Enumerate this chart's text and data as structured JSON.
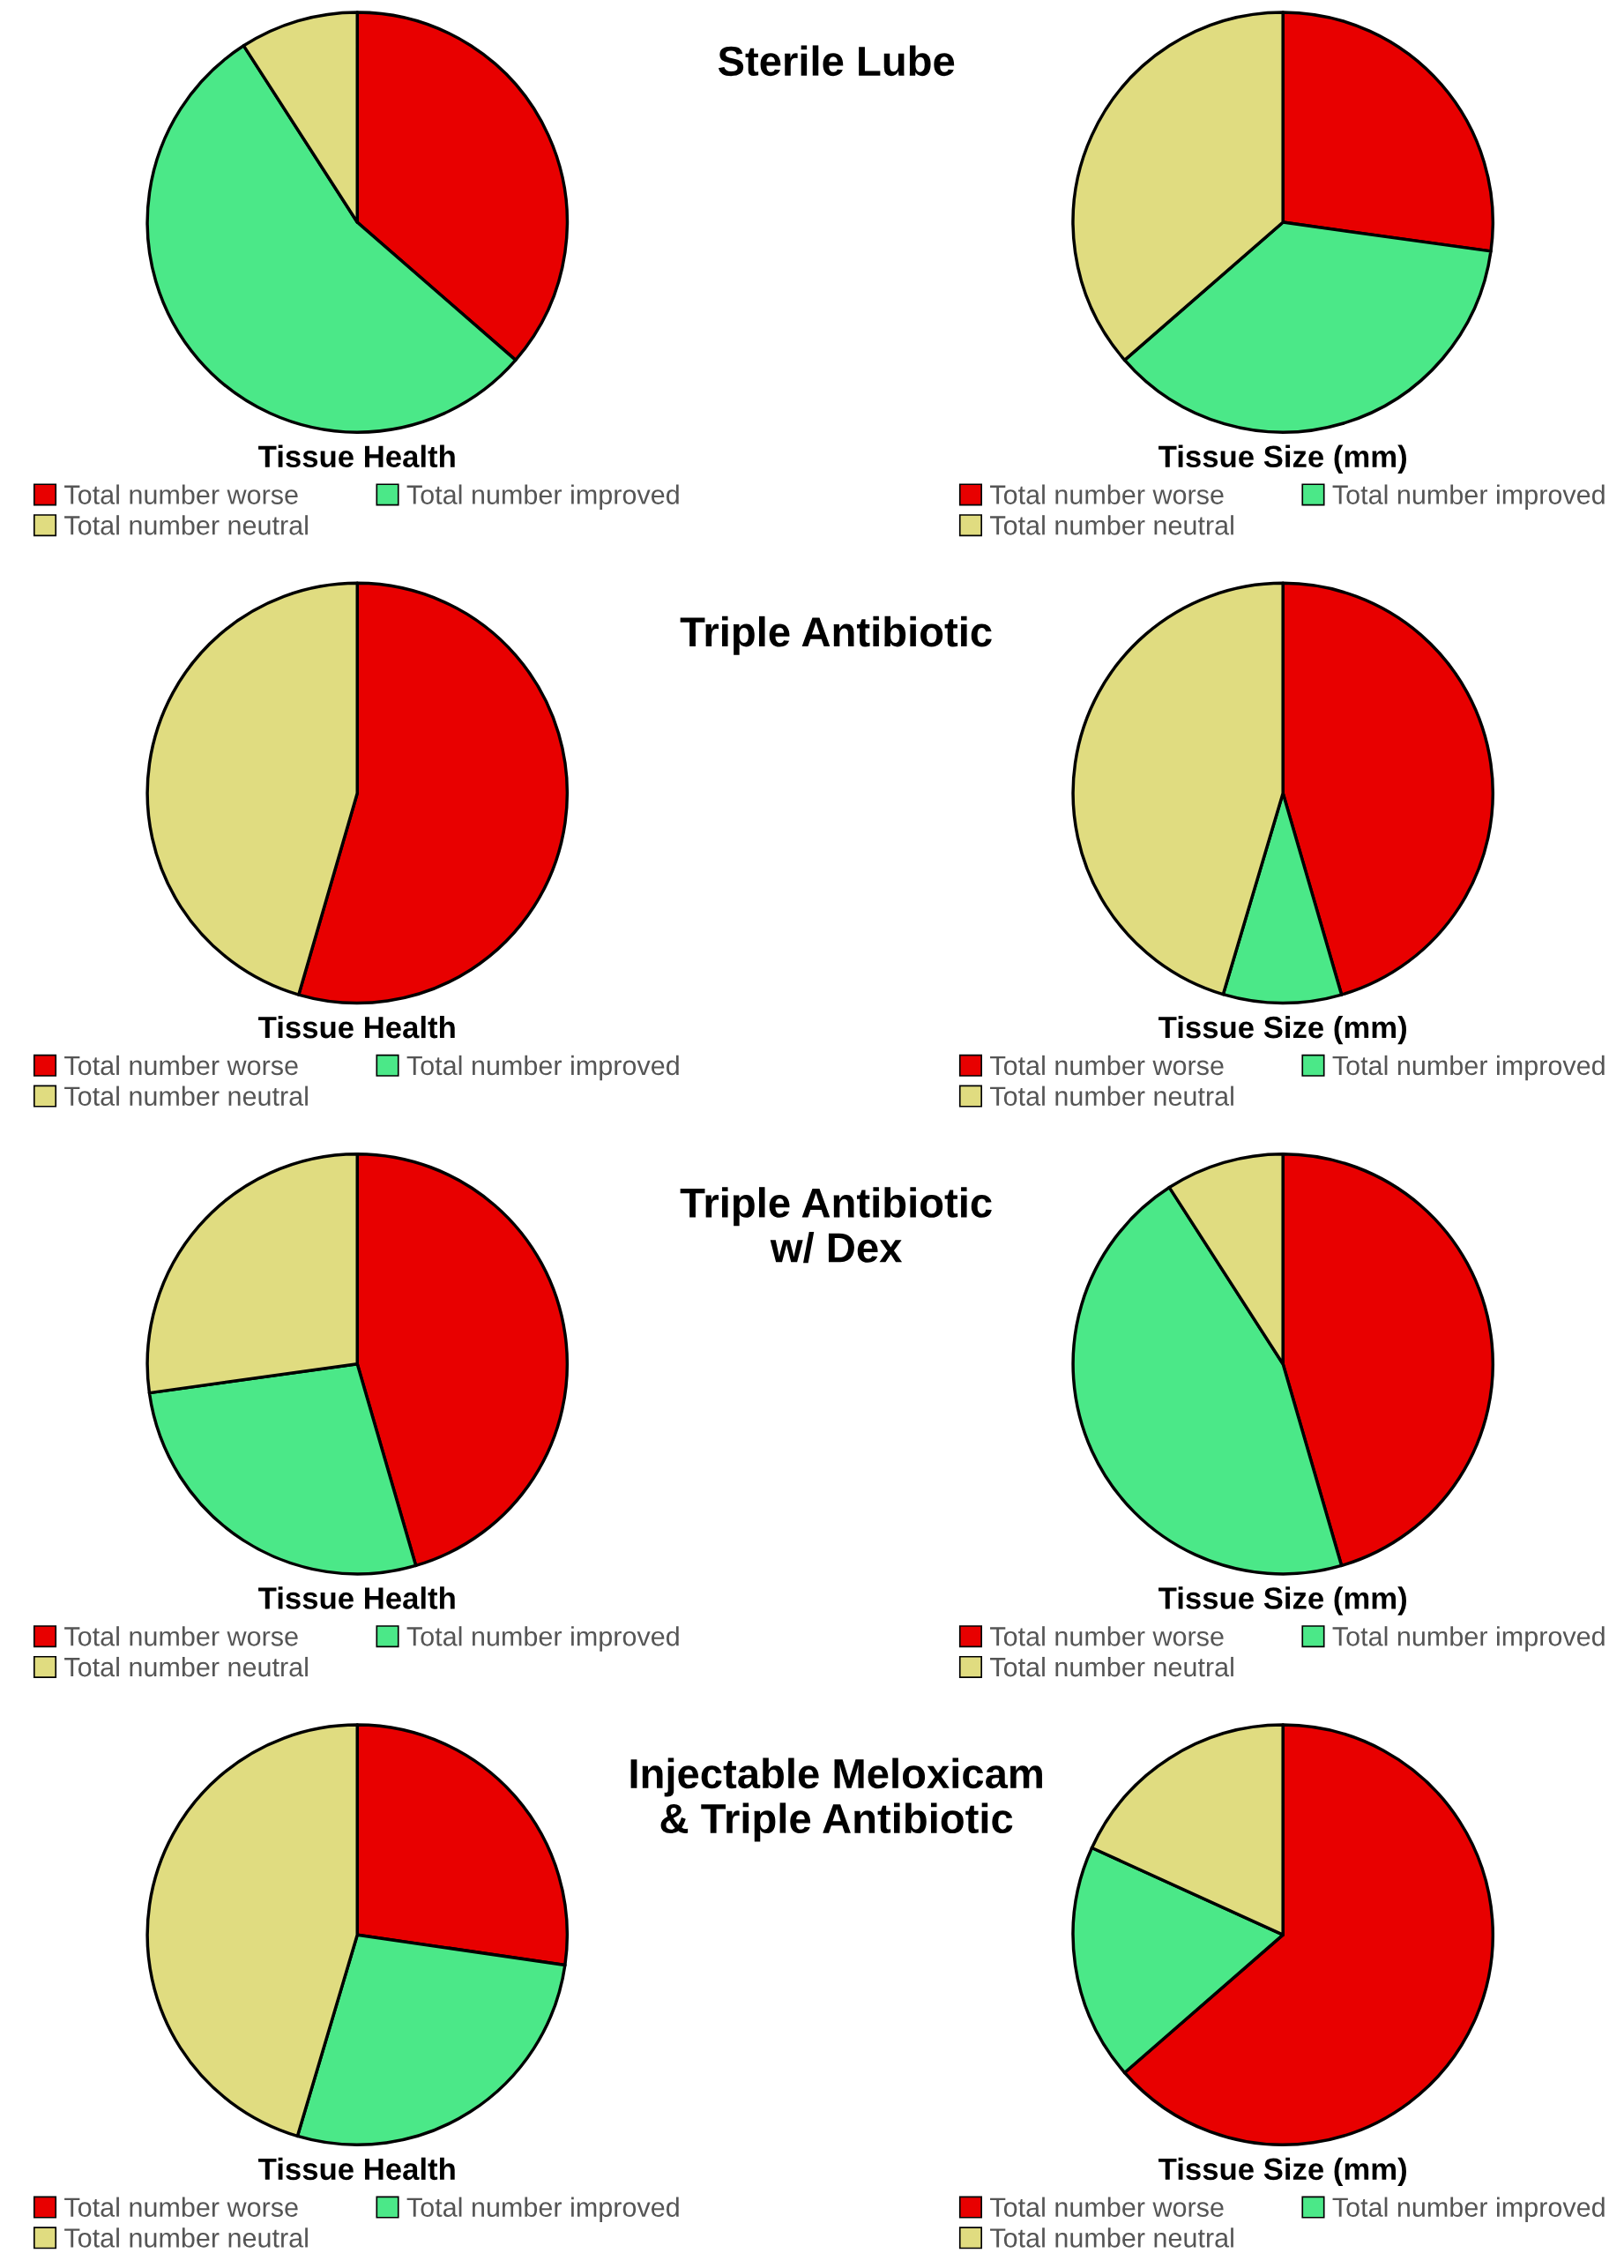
{
  "chart_data": [
    {
      "type": "pie",
      "title": "Tissue Health",
      "annotations": [
        "Sterile Lube"
      ],
      "categories": [
        "Total number worse",
        "Total number improved",
        "Total number neutral"
      ],
      "values": [
        36.4,
        54.5,
        9.1
      ],
      "colors": [
        "#e80000",
        "#4be888",
        "#e0dc80"
      ],
      "legend": "bottom"
    },
    {
      "type": "pie",
      "title": "Tissue Size (mm)",
      "categories": [
        "Total number worse",
        "Total number improved",
        "Total number neutral"
      ],
      "values": [
        27.2,
        36.4,
        36.4
      ],
      "colors": [
        "#e80000",
        "#4be888",
        "#e0dc80"
      ],
      "legend": "bottom"
    },
    {
      "type": "pie",
      "title": "Tissue Health",
      "annotations": [
        "Triple Antibiotic"
      ],
      "categories": [
        "Total number worse",
        "Total number improved",
        "Total number neutral"
      ],
      "values": [
        54.5,
        0,
        45.5
      ],
      "colors": [
        "#e80000",
        "#4be888",
        "#e0dc80"
      ],
      "legend": "bottom"
    },
    {
      "type": "pie",
      "title": "Tissue Size (mm)",
      "categories": [
        "Total number worse",
        "Total number improved",
        "Total number neutral"
      ],
      "values": [
        45.5,
        9.1,
        45.4
      ],
      "colors": [
        "#e80000",
        "#4be888",
        "#e0dc80"
      ],
      "legend": "bottom"
    },
    {
      "type": "pie",
      "title": "Tissue Health",
      "annotations": [
        "Triple Antibiotic\nw/ Dex"
      ],
      "categories": [
        "Total number worse",
        "Total number improved",
        "Total number neutral"
      ],
      "values": [
        45.5,
        27.3,
        27.2
      ],
      "colors": [
        "#e80000",
        "#4be888",
        "#e0dc80"
      ],
      "legend": "bottom"
    },
    {
      "type": "pie",
      "title": "Tissue Size (mm)",
      "categories": [
        "Total number worse",
        "Total number improved",
        "Total number neutral"
      ],
      "values": [
        45.5,
        45.4,
        9.1
      ],
      "colors": [
        "#e80000",
        "#4be888",
        "#e0dc80"
      ],
      "legend": "bottom"
    },
    {
      "type": "pie",
      "title": "Tissue Health",
      "annotations": [
        "Injectable Meloxicam\n& Triple Antibiotic"
      ],
      "categories": [
        "Total number worse",
        "Total number improved",
        "Total number neutral"
      ],
      "values": [
        27.3,
        27.3,
        45.4
      ],
      "colors": [
        "#e80000",
        "#4be888",
        "#e0dc80"
      ],
      "legend": "bottom"
    },
    {
      "type": "pie",
      "title": "Tissue Size (mm)",
      "categories": [
        "Total number worse",
        "Total number improved",
        "Total number neutral"
      ],
      "values": [
        63.6,
        18.2,
        18.2
      ],
      "colors": [
        "#e80000",
        "#4be888",
        "#e0dc80"
      ],
      "legend": "bottom"
    }
  ]
}
